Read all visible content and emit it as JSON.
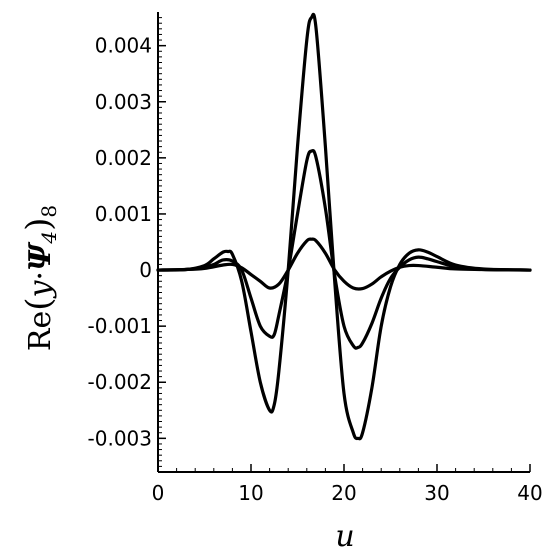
{
  "chart_data": {
    "type": "line",
    "xlabel": "u",
    "ylabel_parts": {
      "re": "Re",
      "y": "y",
      "psi": "Ψ",
      "sub": "4",
      "post": "8"
    },
    "xlim": [
      0,
      40
    ],
    "ylim": [
      -0.0036,
      0.0046
    ],
    "x_ticks": [
      0,
      10,
      20,
      30,
      40
    ],
    "x_tick_labels": [
      "0",
      "10",
      "20",
      "30",
      "40"
    ],
    "y_ticks": [
      -0.003,
      -0.002,
      -0.001,
      0,
      0.001,
      0.002,
      0.003,
      0.004
    ],
    "y_tick_labels": [
      "-0.003",
      "-0.002",
      "-0.001",
      "0",
      "0.001",
      "0.002",
      "0.003",
      "0.004"
    ],
    "grid": false,
    "line_color": "#000000",
    "series": [
      {
        "x": [
          0,
          3,
          5,
          6,
          7,
          7.5,
          8,
          9,
          10,
          11,
          12,
          12.5,
          13,
          14,
          15,
          16,
          16.5,
          17,
          18,
          19,
          20,
          21,
          21.5,
          22,
          23,
          24,
          25,
          26,
          27,
          28,
          29,
          30,
          32,
          35,
          40
        ],
        "y": [
          0,
          1e-05,
          8e-05,
          0.0002,
          0.00032,
          0.00033,
          0.00028,
          -0.0002,
          -0.0011,
          -0.002,
          -0.0025,
          -0.0024,
          -0.0018,
          0,
          0.0022,
          0.0041,
          0.0045,
          0.0043,
          0.0022,
          -0.0002,
          -0.0022,
          -0.0029,
          -0.003,
          -0.0029,
          -0.0021,
          -0.001,
          -0.0003,
          0.0001,
          0.0003,
          0.00036,
          0.00032,
          0.00024,
          9e-05,
          2e-05,
          0
        ]
      },
      {
        "x": [
          0,
          3,
          5,
          6,
          7,
          8,
          9,
          10,
          11,
          12,
          12.5,
          13,
          14,
          15,
          16,
          16.5,
          17,
          18,
          19,
          20,
          21,
          21.5,
          22,
          23,
          24,
          25,
          26,
          27,
          28,
          29,
          30,
          32,
          35,
          40
        ],
        "y": [
          0,
          1e-05,
          5e-05,
          0.0001,
          0.00018,
          0.00016,
          0.0,
          -0.0005,
          -0.001,
          -0.00118,
          -0.00115,
          -0.0008,
          0,
          0.001,
          0.00195,
          0.00212,
          0.002,
          0.0011,
          -0.0001,
          -0.001,
          -0.00135,
          -0.00138,
          -0.0013,
          -0.00095,
          -0.0005,
          -0.00015,
          5e-05,
          0.00018,
          0.00023,
          0.0002,
          0.00015,
          6e-05,
          1e-05,
          0
        ]
      },
      {
        "x": [
          0,
          3,
          5,
          7,
          8,
          9,
          10,
          11,
          12,
          13,
          14,
          15,
          16,
          16.5,
          17,
          18,
          19,
          20,
          21,
          22,
          23,
          24,
          25,
          26,
          27,
          28,
          30,
          32,
          35,
          40
        ],
        "y": [
          0,
          1e-05,
          3e-05,
          9e-05,
          0.0001,
          4e-05,
          -8e-05,
          -0.0002,
          -0.00032,
          -0.00025,
          0,
          0.0003,
          0.00052,
          0.00055,
          0.00052,
          0.0003,
          0,
          -0.0002,
          -0.00032,
          -0.00033,
          -0.00025,
          -0.00012,
          -2e-05,
          5e-05,
          8e-05,
          8e-05,
          5e-05,
          2e-05,
          1e-05,
          0
        ]
      }
    ]
  }
}
